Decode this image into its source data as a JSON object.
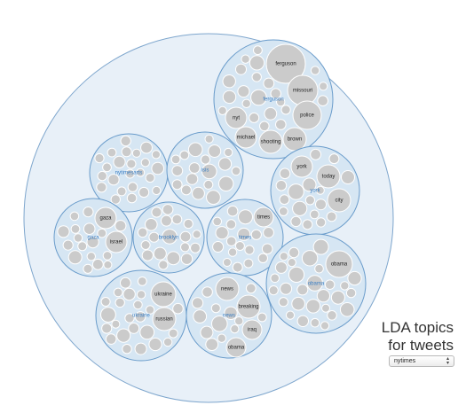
{
  "title": {
    "line1": "LDA topics",
    "line2": "for tweets"
  },
  "selector": {
    "selected": "nytimes",
    "arrow_icon": "up-down-arrows-icon"
  },
  "colors": {
    "root_fill": "#e8f0f8",
    "root_stroke": "#7ea6cd",
    "topic_fill": "#d6e6f3",
    "topic_stroke": "#6a9ccb",
    "leaf_fill": "#cbcbcb",
    "leaf_stroke": "#ffffff",
    "topic_label": "#3b7fc4"
  },
  "topics": [
    {
      "label": "ferguson",
      "words": [
        "ferguson",
        "missouri",
        "police",
        "nyt",
        "michael",
        "shooting",
        "brown"
      ]
    },
    {
      "label": "nytimesarts",
      "words": []
    },
    {
      "label": "isis",
      "words": []
    },
    {
      "label": "york",
      "words": [
        "york",
        "today",
        "city"
      ]
    },
    {
      "label": "gaza",
      "words": [
        "gaza",
        "israel"
      ]
    },
    {
      "label": "brooklyn",
      "words": []
    },
    {
      "label": "times",
      "words": [
        "times"
      ]
    },
    {
      "label": "obama",
      "words": [
        "obama"
      ]
    },
    {
      "label": "ukraine",
      "words": [
        "ukraine",
        "russian"
      ]
    },
    {
      "label": "news",
      "words": [
        "news",
        "breaking",
        "iraq",
        "obama"
      ]
    }
  ]
}
